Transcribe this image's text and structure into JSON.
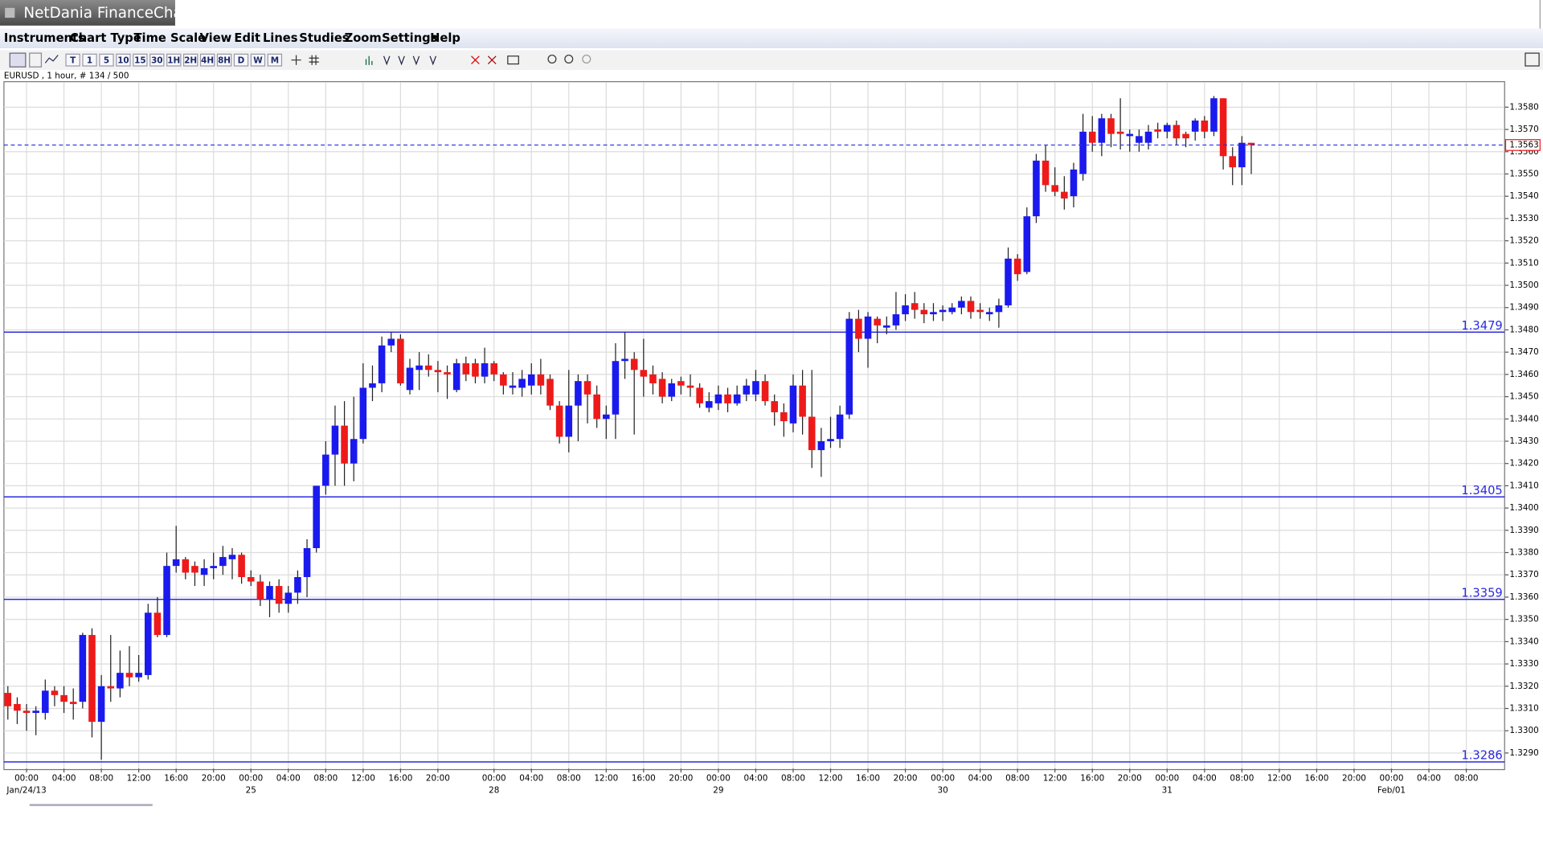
{
  "window_title": "NetDania FinanceChart",
  "menu": [
    "Instruments",
    "Chart Type",
    "Time Scale",
    "View",
    "Edit",
    "Lines",
    "Studies",
    "Zoom",
    "Settings",
    "Help"
  ],
  "toolbar": [
    "T",
    "1",
    "5",
    "10",
    "15",
    "30",
    "1H",
    "2H",
    "4H",
    "8H",
    "D",
    "W",
    "M"
  ],
  "chart_label": "EURUSD , 1 hour, # 134 / 500",
  "chart_data": {
    "type": "candlestick",
    "up_color": "#1a1aee",
    "down_color": "#ee1a1a",
    "level_color": "#2a2ae0",
    "grid": true,
    "xlim": [
      -2.42,
      158.1
    ],
    "ylim": [
      1.3283,
      1.3591
    ],
    "x": [
      -2,
      -1,
      0,
      1,
      2,
      3,
      4,
      5,
      6,
      7,
      8,
      9,
      10,
      11,
      12,
      13,
      14,
      15,
      16,
      17,
      18,
      19,
      20,
      21,
      22,
      23,
      24,
      25,
      26,
      27,
      28,
      29,
      30,
      31,
      32,
      33,
      34,
      35,
      36,
      37,
      38,
      39,
      40,
      41,
      42,
      43,
      44,
      45,
      46,
      47,
      48,
      49,
      50,
      51,
      52,
      53,
      54,
      55,
      56,
      57,
      58,
      59,
      60,
      61,
      62,
      63,
      64,
      65,
      66,
      67,
      68,
      69,
      70,
      71,
      72,
      73,
      74,
      75,
      76,
      77,
      78,
      79,
      80,
      81,
      82,
      83,
      84,
      85,
      86,
      87,
      88,
      89,
      90,
      91,
      92,
      93,
      94,
      95,
      96,
      97,
      98,
      99,
      100,
      101,
      102,
      103,
      104,
      105,
      106,
      107,
      108,
      109,
      110,
      111,
      112,
      113,
      114,
      115,
      116,
      117,
      118,
      119,
      120,
      121,
      122,
      123,
      124,
      125,
      126,
      127,
      128,
      129,
      130,
      131
    ],
    "open": [
      1.3317,
      1.3312,
      1.3309,
      1.3308,
      1.3308,
      1.3318,
      1.3316,
      1.3313,
      1.3313,
      1.3343,
      1.3304,
      1.332,
      1.3319,
      1.3326,
      1.3324,
      1.3325,
      1.3353,
      1.3343,
      1.3374,
      1.3377,
      1.3374,
      1.337,
      1.3373,
      1.3374,
      1.3377,
      1.3379,
      1.3369,
      1.3367,
      1.3359,
      1.3365,
      1.3357,
      1.3362,
      1.3369,
      1.3382,
      1.341,
      1.3424,
      1.3437,
      1.342,
      1.3431,
      1.3454,
      1.3456,
      1.3473,
      1.3476,
      1.3453,
      1.3462,
      1.3464,
      1.3462,
      1.3461,
      1.3453,
      1.3465,
      1.3465,
      1.3459,
      1.3465,
      1.346,
      1.3454,
      1.3454,
      1.3455,
      1.346,
      1.3458,
      1.3446,
      1.3432,
      1.3446,
      1.3457,
      1.3451,
      1.344,
      1.3442,
      1.3466,
      1.3467,
      1.3462,
      1.346,
      1.3458,
      1.345,
      1.3457,
      1.3455,
      1.3454,
      1.3445,
      1.3447,
      1.3451,
      1.3447,
      1.3451,
      1.3451,
      1.3457,
      1.3448,
      1.3443,
      1.3438,
      1.3455,
      1.3441,
      1.3426,
      1.343,
      1.3431,
      1.3442,
      1.3485,
      1.3476,
      1.3485,
      1.3481,
      1.3482,
      1.3487,
      1.3492,
      1.3489,
      1.3487,
      1.3488,
      1.3488,
      1.349,
      1.3493,
      1.3489,
      1.3487,
      1.3488,
      1.3491,
      1.3512,
      1.3506,
      1.3531,
      1.3556,
      1.3545,
      1.3542,
      1.354,
      1.355,
      1.3569,
      1.3564,
      1.3575,
      1.3569,
      1.3567,
      1.3564,
      1.3564,
      1.357,
      1.3569,
      1.3572,
      1.3568,
      1.3569,
      1.3574,
      1.3569,
      1.3584,
      1.3558,
      1.3553,
      1.3564
    ],
    "high": [
      1.332,
      1.3315,
      1.3312,
      1.3311,
      1.3323,
      1.332,
      1.332,
      1.3319,
      1.3344,
      1.3346,
      1.3325,
      1.3343,
      1.3336,
      1.3338,
      1.3334,
      1.3357,
      1.336,
      1.338,
      1.3392,
      1.3378,
      1.3376,
      1.3377,
      1.338,
      1.3383,
      1.3382,
      1.338,
      1.3372,
      1.337,
      1.3367,
      1.3368,
      1.3365,
      1.3372,
      1.3386,
      1.341,
      1.343,
      1.3446,
      1.3448,
      1.345,
      1.3465,
      1.3464,
      1.3477,
      1.3479,
      1.3478,
      1.3467,
      1.347,
      1.3469,
      1.3466,
      1.3464,
      1.3467,
      1.3468,
      1.3467,
      1.3472,
      1.3466,
      1.3461,
      1.3461,
      1.3462,
      1.3465,
      1.3467,
      1.346,
      1.3448,
      1.3462,
      1.346,
      1.346,
      1.3455,
      1.3446,
      1.3474,
      1.3479,
      1.347,
      1.3476,
      1.3464,
      1.3461,
      1.3458,
      1.3459,
      1.346,
      1.3456,
      1.3452,
      1.3455,
      1.3454,
      1.3455,
      1.3458,
      1.3462,
      1.346,
      1.3451,
      1.3447,
      1.346,
      1.3462,
      1.3462,
      1.3436,
      1.3441,
      1.3446,
      1.3488,
      1.3489,
      1.3488,
      1.3486,
      1.3486,
      1.3497,
      1.3496,
      1.3497,
      1.3492,
      1.3492,
      1.3491,
      1.3492,
      1.3495,
      1.3495,
      1.3492,
      1.349,
      1.3494,
      1.3517,
      1.3514,
      1.3535,
      1.3559,
      1.3563,
      1.3553,
      1.3549,
      1.3555,
      1.3577,
      1.3576,
      1.3577,
      1.3577,
      1.3584,
      1.357,
      1.357,
      1.3572,
      1.3573,
      1.3573,
      1.3574,
      1.3569,
      1.3575,
      1.3576,
      1.3585,
      1.3584,
      1.3562,
      1.3567,
      1.3564
    ],
    "low": [
      1.3305,
      1.3303,
      1.33,
      1.3298,
      1.3305,
      1.3311,
      1.3308,
      1.3305,
      1.331,
      1.3297,
      1.3287,
      1.3313,
      1.3315,
      1.332,
      1.3322,
      1.3323,
      1.3342,
      1.3342,
      1.3371,
      1.3368,
      1.3365,
      1.3365,
      1.3368,
      1.337,
      1.3368,
      1.3366,
      1.3365,
      1.3356,
      1.3351,
      1.3353,
      1.3353,
      1.3357,
      1.336,
      1.338,
      1.3406,
      1.341,
      1.341,
      1.3412,
      1.3429,
      1.3448,
      1.3452,
      1.347,
      1.3455,
      1.3451,
      1.3453,
      1.3459,
      1.3452,
      1.3449,
      1.3452,
      1.3457,
      1.3456,
      1.3456,
      1.3457,
      1.3451,
      1.3451,
      1.345,
      1.3451,
      1.3451,
      1.3444,
      1.3429,
      1.3425,
      1.343,
      1.3438,
      1.3436,
      1.3431,
      1.3431,
      1.3458,
      1.3433,
      1.345,
      1.3451,
      1.3447,
      1.3448,
      1.3451,
      1.345,
      1.3445,
      1.3443,
      1.3444,
      1.3443,
      1.3446,
      1.3448,
      1.3448,
      1.3446,
      1.3437,
      1.3432,
      1.3434,
      1.3433,
      1.3418,
      1.3414,
      1.3427,
      1.3427,
      1.344,
      1.347,
      1.3463,
      1.3474,
      1.3478,
      1.348,
      1.3484,
      1.3485,
      1.3483,
      1.3484,
      1.3484,
      1.3487,
      1.3487,
      1.3485,
      1.3485,
      1.3484,
      1.3481,
      1.349,
      1.3502,
      1.3505,
      1.3528,
      1.3542,
      1.354,
      1.3534,
      1.3535,
      1.3547,
      1.356,
      1.3558,
      1.3562,
      1.3561,
      1.356,
      1.356,
      1.3561,
      1.3566,
      1.3566,
      1.3563,
      1.3562,
      1.3565,
      1.3566,
      1.3567,
      1.3552,
      1.3545,
      1.3545,
      1.355
    ],
    "close": [
      1.3311,
      1.3309,
      1.3308,
      1.3309,
      1.3318,
      1.3316,
      1.3313,
      1.3312,
      1.3343,
      1.3304,
      1.332,
      1.3319,
      1.3326,
      1.3324,
      1.3326,
      1.3353,
      1.3343,
      1.3374,
      1.3377,
      1.3371,
      1.3371,
      1.3373,
      1.3374,
      1.3378,
      1.3379,
      1.3369,
      1.3367,
      1.3359,
      1.3365,
      1.3357,
      1.3362,
      1.3369,
      1.3382,
      1.341,
      1.3424,
      1.3437,
      1.342,
      1.3431,
      1.3454,
      1.3456,
      1.3473,
      1.3476,
      1.3456,
      1.3463,
      1.3464,
      1.3462,
      1.3461,
      1.346,
      1.3465,
      1.346,
      1.3459,
      1.3465,
      1.346,
      1.3455,
      1.3455,
      1.3458,
      1.346,
      1.3455,
      1.3446,
      1.3432,
      1.3446,
      1.3457,
      1.3451,
      1.344,
      1.3442,
      1.3466,
      1.3467,
      1.3462,
      1.3459,
      1.3456,
      1.345,
      1.3456,
      1.3455,
      1.3454,
      1.3447,
      1.3448,
      1.3451,
      1.3447,
      1.3451,
      1.3455,
      1.3457,
      1.3448,
      1.3443,
      1.3439,
      1.3455,
      1.3441,
      1.3426,
      1.343,
      1.3431,
      1.3442,
      1.3485,
      1.3476,
      1.3486,
      1.3482,
      1.3482,
      1.3487,
      1.3491,
      1.3489,
      1.3487,
      1.3488,
      1.3489,
      1.349,
      1.3493,
      1.3488,
      1.3488,
      1.3488,
      1.3491,
      1.3512,
      1.3505,
      1.3531,
      1.3556,
      1.3545,
      1.3542,
      1.3539,
      1.3552,
      1.3569,
      1.3564,
      1.3575,
      1.3568,
      1.3568,
      1.3568,
      1.3567,
      1.3569,
      1.3569,
      1.3572,
      1.3566,
      1.3566,
      1.3574,
      1.3569,
      1.3584,
      1.3558,
      1.3553,
      1.3564,
      1.3563
    ],
    "yticks": [
      {
        "value": 1.329,
        "label": "1.3290"
      },
      {
        "value": 1.33,
        "label": "1.3300"
      },
      {
        "value": 1.331,
        "label": "1.3310"
      },
      {
        "value": 1.332,
        "label": "1.3320"
      },
      {
        "value": 1.333,
        "label": "1.3330"
      },
      {
        "value": 1.334,
        "label": "1.3340"
      },
      {
        "value": 1.335,
        "label": "1.3350"
      },
      {
        "value": 1.336,
        "label": "1.3360"
      },
      {
        "value": 1.337,
        "label": "1.3370"
      },
      {
        "value": 1.338,
        "label": "1.3380"
      },
      {
        "value": 1.339,
        "label": "1.3390"
      },
      {
        "value": 1.34,
        "label": "1.3400"
      },
      {
        "value": 1.341,
        "label": "1.3410"
      },
      {
        "value": 1.342,
        "label": "1.3420"
      },
      {
        "value": 1.343,
        "label": "1.3430"
      },
      {
        "value": 1.344,
        "label": "1.3440"
      },
      {
        "value": 1.345,
        "label": "1.3450"
      },
      {
        "value": 1.346,
        "label": "1.3460"
      },
      {
        "value": 1.347,
        "label": "1.3470"
      },
      {
        "value": 1.348,
        "label": "1.3480"
      },
      {
        "value": 1.349,
        "label": "1.3490"
      },
      {
        "value": 1.35,
        "label": "1.3500"
      },
      {
        "value": 1.351,
        "label": "1.3510"
      },
      {
        "value": 1.352,
        "label": "1.3520"
      },
      {
        "value": 1.353,
        "label": "1.3530"
      },
      {
        "value": 1.354,
        "label": "1.3540"
      },
      {
        "value": 1.355,
        "label": "1.3550"
      },
      {
        "value": 1.356,
        "label": "1.3560"
      },
      {
        "value": 1.357,
        "label": "1.3570"
      },
      {
        "value": 1.358,
        "label": "1.3580"
      }
    ],
    "xticks": [
      {
        "value": 0,
        "label": "00:00"
      },
      {
        "value": 4,
        "label": "04:00"
      },
      {
        "value": 8,
        "label": "08:00"
      },
      {
        "value": 12,
        "label": "12:00"
      },
      {
        "value": 16,
        "label": "16:00"
      },
      {
        "value": 20,
        "label": "20:00"
      },
      {
        "value": 24,
        "label": "00:00"
      },
      {
        "value": 28,
        "label": "04:00"
      },
      {
        "value": 32,
        "label": "08:00"
      },
      {
        "value": 36,
        "label": "12:00"
      },
      {
        "value": 40,
        "label": "16:00"
      },
      {
        "value": 44,
        "label": "20:00"
      },
      {
        "value": 50,
        "label": "00:00"
      },
      {
        "value": 54,
        "label": "04:00"
      },
      {
        "value": 58,
        "label": "08:00"
      },
      {
        "value": 62,
        "label": "12:00"
      },
      {
        "value": 66,
        "label": "16:00"
      },
      {
        "value": 70,
        "label": "20:00"
      },
      {
        "value": 74,
        "label": "00:00"
      },
      {
        "value": 78,
        "label": "04:00"
      },
      {
        "value": 82,
        "label": "08:00"
      },
      {
        "value": 86,
        "label": "12:00"
      },
      {
        "value": 90,
        "label": "16:00"
      },
      {
        "value": 94,
        "label": "20:00"
      },
      {
        "value": 98,
        "label": "00:00"
      },
      {
        "value": 102,
        "label": "04:00"
      },
      {
        "value": 106,
        "label": "08:00"
      },
      {
        "value": 110,
        "label": "12:00"
      },
      {
        "value": 114,
        "label": "16:00"
      },
      {
        "value": 118,
        "label": "20:00"
      },
      {
        "value": 122,
        "label": "00:00"
      },
      {
        "value": 126,
        "label": "04:00"
      },
      {
        "value": 130,
        "label": "08:00"
      },
      {
        "value": 134,
        "label": "12:00"
      },
      {
        "value": 138,
        "label": "16:00"
      },
      {
        "value": 142,
        "label": "20:00"
      },
      {
        "value": 146,
        "label": "00:00"
      },
      {
        "value": 150,
        "label": "04:00"
      },
      {
        "value": 154,
        "label": "08:00"
      }
    ],
    "date_labels": [
      {
        "value": 0,
        "label": "Jan/24/13"
      },
      {
        "value": 24,
        "label": "25"
      },
      {
        "value": 50,
        "label": "28"
      },
      {
        "value": 74,
        "label": "29"
      },
      {
        "value": 98,
        "label": "30"
      },
      {
        "value": 122,
        "label": "31"
      },
      {
        "value": 146,
        "label": "Feb/01"
      }
    ],
    "levels": [
      1.3479,
      1.3405,
      1.3359,
      1.3286
    ],
    "last_price": 1.3563
  }
}
